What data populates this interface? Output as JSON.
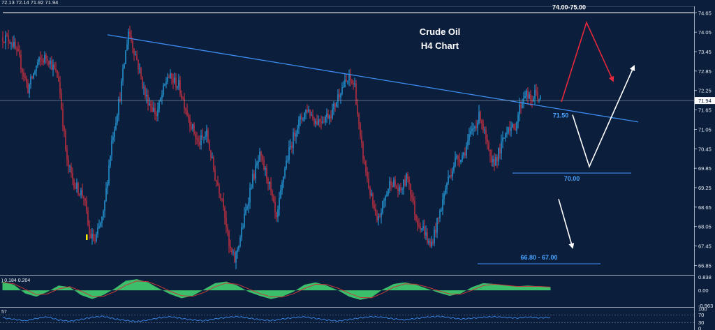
{
  "header": {
    "ohlc": "72.13 72.14 71.92 71.94"
  },
  "chart_data": {
    "type": "candlestick",
    "title": "Crude Oil",
    "subtitle": "H4 Chart",
    "symbol": "Crude Oil",
    "timeframe": "H4",
    "current_price": "71.94",
    "ylim": [
      66.6,
      74.85
    ],
    "y_ticks": [
      "74.65",
      "74.05",
      "73.45",
      "72.85",
      "72.25",
      "71.65",
      "71.05",
      "70.45",
      "69.85",
      "69.25",
      "68.65",
      "68.05",
      "67.45",
      "66.85"
    ],
    "price_path": [
      {
        "i": 0,
        "p": 73.9
      },
      {
        "i": 6,
        "p": 73.8
      },
      {
        "i": 12,
        "p": 73.2
      },
      {
        "i": 18,
        "p": 72.3
      },
      {
        "i": 25,
        "p": 73.1
      },
      {
        "i": 32,
        "p": 73.3
      },
      {
        "i": 40,
        "p": 72.6
      },
      {
        "i": 46,
        "p": 70.0
      },
      {
        "i": 52,
        "p": 69.3
      },
      {
        "i": 58,
        "p": 69.0
      },
      {
        "i": 62,
        "p": 67.8
      },
      {
        "i": 66,
        "p": 67.6
      },
      {
        "i": 72,
        "p": 68.4
      },
      {
        "i": 78,
        "p": 70.7
      },
      {
        "i": 84,
        "p": 72.1
      },
      {
        "i": 90,
        "p": 74.1
      },
      {
        "i": 96,
        "p": 73.2
      },
      {
        "i": 102,
        "p": 72.1
      },
      {
        "i": 110,
        "p": 71.5
      },
      {
        "i": 118,
        "p": 72.7
      },
      {
        "i": 126,
        "p": 72.4
      },
      {
        "i": 134,
        "p": 71.3
      },
      {
        "i": 140,
        "p": 70.6
      },
      {
        "i": 146,
        "p": 70.9
      },
      {
        "i": 152,
        "p": 69.6
      },
      {
        "i": 158,
        "p": 68.8
      },
      {
        "i": 162,
        "p": 67.4
      },
      {
        "i": 166,
        "p": 67.0
      },
      {
        "i": 172,
        "p": 68.1
      },
      {
        "i": 178,
        "p": 69.4
      },
      {
        "i": 184,
        "p": 70.2
      },
      {
        "i": 190,
        "p": 69.5
      },
      {
        "i": 196,
        "p": 68.2
      },
      {
        "i": 202,
        "p": 69.9
      },
      {
        "i": 210,
        "p": 71.1
      },
      {
        "i": 218,
        "p": 71.7
      },
      {
        "i": 224,
        "p": 71.3
      },
      {
        "i": 230,
        "p": 71.4
      },
      {
        "i": 236,
        "p": 71.6
      },
      {
        "i": 242,
        "p": 72.3
      },
      {
        "i": 248,
        "p": 72.6
      },
      {
        "i": 252,
        "p": 72.4
      },
      {
        "i": 256,
        "p": 70.7
      },
      {
        "i": 262,
        "p": 69.3
      },
      {
        "i": 268,
        "p": 68.1
      },
      {
        "i": 272,
        "p": 68.7
      },
      {
        "i": 278,
        "p": 69.5
      },
      {
        "i": 284,
        "p": 69.1
      },
      {
        "i": 290,
        "p": 69.6
      },
      {
        "i": 296,
        "p": 68.3
      },
      {
        "i": 302,
        "p": 67.9
      },
      {
        "i": 306,
        "p": 67.4
      },
      {
        "i": 312,
        "p": 68.3
      },
      {
        "i": 318,
        "p": 69.4
      },
      {
        "i": 324,
        "p": 70.1
      },
      {
        "i": 330,
        "p": 70.3
      },
      {
        "i": 336,
        "p": 71.0
      },
      {
        "i": 342,
        "p": 71.5
      },
      {
        "i": 346,
        "p": 70.7
      },
      {
        "i": 350,
        "p": 69.9
      },
      {
        "i": 356,
        "p": 70.4
      },
      {
        "i": 362,
        "p": 71.2
      },
      {
        "i": 366,
        "p": 71.0
      },
      {
        "i": 370,
        "p": 71.7
      },
      {
        "i": 374,
        "p": 72.2
      },
      {
        "i": 378,
        "p": 71.9
      },
      {
        "i": 382,
        "p": 72.2
      },
      {
        "i": 385,
        "p": 71.94
      }
    ],
    "trendline": {
      "from": {
        "i": 75,
        "p": 73.97
      },
      "to": {
        "i": 455,
        "p": 71.28
      }
    },
    "levels": [
      {
        "label": "74.00-75.00",
        "price": 74.65,
        "from_i": 0,
        "to_i": 500
      },
      {
        "label": "70.00",
        "price": 69.7,
        "from_i": 365,
        "to_i": 450
      },
      {
        "label": "66.80 - 67.00",
        "price": 66.9,
        "from_i": 340,
        "to_i": 428
      }
    ],
    "labels": [
      {
        "text": "71.50",
        "price": 71.5
      }
    ],
    "scenario_arrows": [
      {
        "color": "#e8283c",
        "points": [
          {
            "i": 400,
            "p": 71.9
          },
          {
            "i": 418,
            "p": 74.35
          },
          {
            "i": 437,
            "p": 72.55
          }
        ]
      },
      {
        "color": "#ffffff",
        "points": [
          {
            "i": 408,
            "p": 71.5
          },
          {
            "i": 420,
            "p": 69.9
          },
          {
            "i": 452,
            "p": 73.0
          }
        ]
      },
      {
        "color": "#ffffff",
        "points": [
          {
            "i": 398,
            "p": 68.9
          },
          {
            "i": 408,
            "p": 67.4
          }
        ]
      }
    ],
    "oscillator": {
      "label": ") 0.184 0.204",
      "ticks": [
        "0.838",
        "0.00",
        "-0.963"
      ],
      "ylim": [
        -0.963,
        0.838
      ],
      "values": [
        0.55,
        0.35,
        -0.2,
        -0.4,
        -0.1,
        0.3,
        0.2,
        -0.3,
        -0.55,
        -0.3,
        0.1,
        0.6,
        0.7,
        0.5,
        0.1,
        -0.25,
        -0.5,
        -0.35,
        0.05,
        0.45,
        0.55,
        0.3,
        -0.1,
        -0.35,
        -0.55,
        -0.4,
        -0.1,
        0.35,
        0.5,
        0.3,
        0.0,
        -0.4,
        -0.6,
        -0.45,
        0.05,
        0.4,
        0.5,
        0.35,
        0.1,
        -0.15,
        -0.35,
        -0.2,
        0.2,
        0.45,
        0.4,
        0.3,
        0.25,
        0.3,
        0.25,
        0.2
      ]
    },
    "rsi": {
      "label": "57",
      "ticks": [
        "100",
        "70",
        "30",
        "0"
      ],
      "ylim": [
        0,
        100
      ],
      "values": [
        55,
        48,
        40,
        52,
        60,
        44,
        38,
        47,
        58,
        63,
        50,
        42,
        36,
        44,
        55,
        61,
        52,
        45,
        40,
        50,
        57,
        62,
        54,
        46,
        41,
        49,
        56,
        60,
        52,
        44,
        39,
        47,
        55,
        61,
        58,
        50,
        45,
        52,
        59,
        63,
        56,
        49,
        53,
        58,
        61,
        57,
        54,
        59,
        55,
        57
      ]
    }
  }
}
